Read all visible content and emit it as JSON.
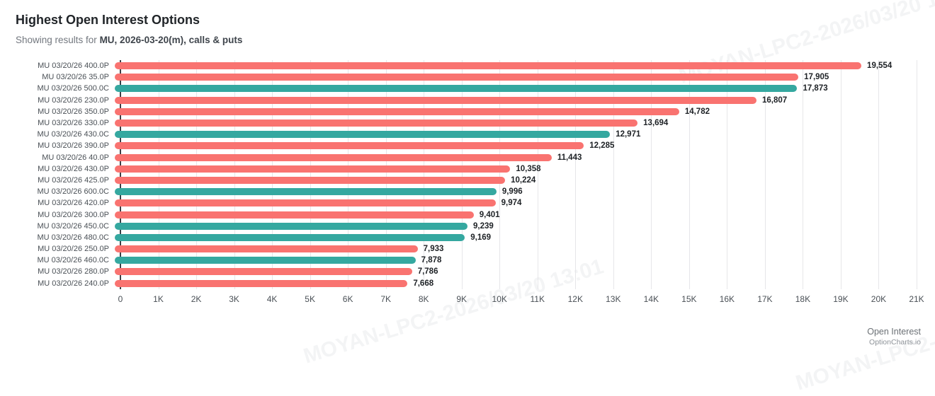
{
  "header": {
    "title": "Highest Open Interest Options",
    "subtitle_prefix": "Showing results for ",
    "subtitle_bold": "MU, 2026-03-20(m), calls & puts"
  },
  "footer": {
    "axis_label": "Open Interest",
    "branding": "OptionCharts.io"
  },
  "watermark": {
    "text": "MOYAN-LPC2-2026/03/20 13:01"
  },
  "chart_data": {
    "type": "bar",
    "orientation": "horizontal",
    "title": "Highest Open Interest Options",
    "xlabel": "Open Interest",
    "ylabel": "",
    "xlim": [
      0,
      21000
    ],
    "grid": true,
    "x_ticks": [
      "0",
      "1K",
      "2K",
      "3K",
      "4K",
      "5K",
      "6K",
      "7K",
      "8K",
      "9K",
      "10K",
      "11K",
      "12K",
      "13K",
      "14K",
      "15K",
      "16K",
      "17K",
      "18K",
      "19K",
      "20K",
      "21K"
    ],
    "colors": {
      "call": "#35a8a0",
      "put": "#f97370"
    },
    "bars": [
      {
        "category": "MU 03/20/26 400.0P",
        "value": 19554,
        "display_value": "19,554",
        "option_type": "put"
      },
      {
        "category": "MU 03/20/26 35.0P",
        "value": 17905,
        "display_value": "17,905",
        "option_type": "put"
      },
      {
        "category": "MU 03/20/26 500.0C",
        "value": 17873,
        "display_value": "17,873",
        "option_type": "call"
      },
      {
        "category": "MU 03/20/26 230.0P",
        "value": 16807,
        "display_value": "16,807",
        "option_type": "put"
      },
      {
        "category": "MU 03/20/26 350.0P",
        "value": 14782,
        "display_value": "14,782",
        "option_type": "put"
      },
      {
        "category": "MU 03/20/26 330.0P",
        "value": 13694,
        "display_value": "13,694",
        "option_type": "put"
      },
      {
        "category": "MU 03/20/26 430.0C",
        "value": 12971,
        "display_value": "12,971",
        "option_type": "call"
      },
      {
        "category": "MU 03/20/26 390.0P",
        "value": 12285,
        "display_value": "12,285",
        "option_type": "put"
      },
      {
        "category": "MU 03/20/26 40.0P",
        "value": 11443,
        "display_value": "11,443",
        "option_type": "put"
      },
      {
        "category": "MU 03/20/26 430.0P",
        "value": 10358,
        "display_value": "10,358",
        "option_type": "put"
      },
      {
        "category": "MU 03/20/26 425.0P",
        "value": 10224,
        "display_value": "10,224",
        "option_type": "put"
      },
      {
        "category": "MU 03/20/26 600.0C",
        "value": 9996,
        "display_value": "9,996",
        "option_type": "call"
      },
      {
        "category": "MU 03/20/26 420.0P",
        "value": 9974,
        "display_value": "9,974",
        "option_type": "put"
      },
      {
        "category": "MU 03/20/26 300.0P",
        "value": 9401,
        "display_value": "9,401",
        "option_type": "put"
      },
      {
        "category": "MU 03/20/26 450.0C",
        "value": 9239,
        "display_value": "9,239",
        "option_type": "call"
      },
      {
        "category": "MU 03/20/26 480.0C",
        "value": 9169,
        "display_value": "9,169",
        "option_type": "call"
      },
      {
        "category": "MU 03/20/26 250.0P",
        "value": 7933,
        "display_value": "7,933",
        "option_type": "put"
      },
      {
        "category": "MU 03/20/26 460.0C",
        "value": 7878,
        "display_value": "7,878",
        "option_type": "call"
      },
      {
        "category": "MU 03/20/26 280.0P",
        "value": 7786,
        "display_value": "7,786",
        "option_type": "put"
      },
      {
        "category": "MU 03/20/26 240.0P",
        "value": 7668,
        "display_value": "7,668",
        "option_type": "put"
      }
    ]
  }
}
